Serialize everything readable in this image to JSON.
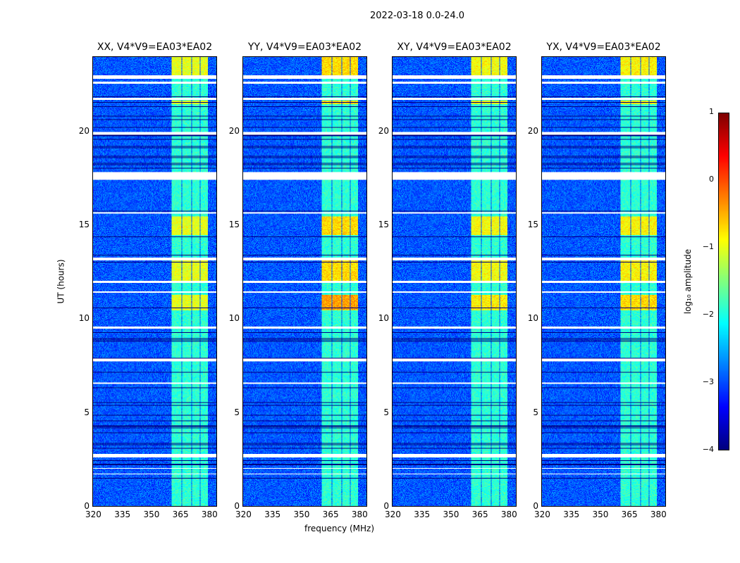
{
  "chart_data": {
    "type": "heatmap",
    "title": "2022-03-18 0.0-24.0",
    "xlabel": "frequency (MHz)",
    "ylabel": "UT (hours)",
    "xlim": [
      320,
      384.4
    ],
    "ylim": [
      0,
      24
    ],
    "xticks": [
      320,
      335,
      350,
      365,
      380
    ],
    "yticks": [
      0,
      5,
      10,
      15,
      20
    ],
    "panels": [
      {
        "title": "XX, V4*V9=EA03*EA02",
        "band_boost": 0.0
      },
      {
        "title": "YY, V4*V9=EA03*EA02",
        "band_boost": 0.3
      },
      {
        "title": "XY, V4*V9=EA03*EA02",
        "band_boost": 0.1
      },
      {
        "title": "YX, V4*V9=EA03*EA02",
        "band_boost": 0.15
      }
    ],
    "bright_subbands_mhz": [
      [
        361,
        366
      ],
      [
        366.5,
        371
      ],
      [
        371.5,
        375.5
      ],
      [
        376,
        380
      ]
    ],
    "flagged_hours": [
      [
        22.85,
        23.05
      ],
      [
        22.6,
        22.72
      ],
      [
        21.75,
        21.85
      ],
      [
        19.85,
        20.0
      ],
      [
        17.45,
        17.85
      ],
      [
        15.65,
        15.72
      ],
      [
        13.15,
        13.3
      ],
      [
        11.95,
        12.05
      ],
      [
        11.4,
        11.48
      ],
      [
        9.5,
        9.62
      ],
      [
        7.75,
        7.9
      ],
      [
        6.55,
        6.62
      ],
      [
        2.62,
        2.8
      ],
      [
        2.0,
        2.05
      ],
      [
        1.7,
        1.74
      ]
    ],
    "high_activity_hours": [
      [
        22.9,
        24
      ],
      [
        21.5,
        21.7
      ],
      [
        12.0,
        13.2
      ],
      [
        10.5,
        11.3
      ],
      [
        14.5,
        15.5
      ]
    ],
    "colorbar": {
      "label": "log₁₀ amplitude",
      "range": [
        -4,
        1
      ],
      "ticks": [
        1,
        0,
        -1,
        -2,
        -3,
        -4
      ],
      "tick_labels": [
        "1",
        "0",
        "−1",
        "−2",
        "−3",
        "−4"
      ],
      "colormap": "jet"
    }
  }
}
